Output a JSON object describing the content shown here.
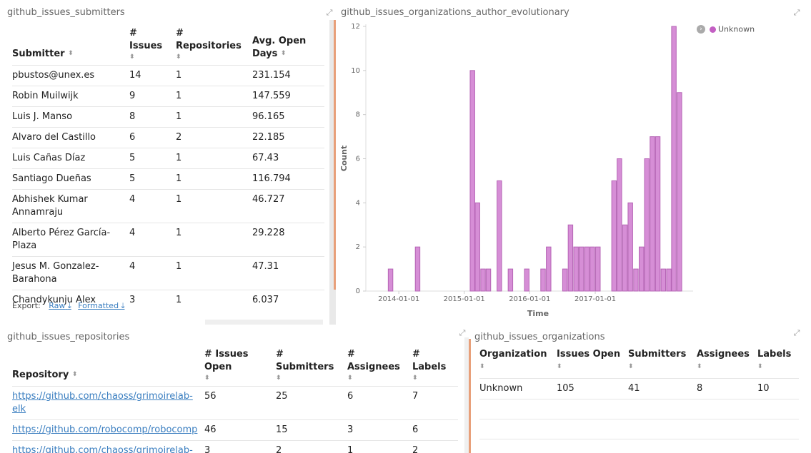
{
  "submitters": {
    "title": "github_issues_submitters",
    "columns": {
      "submitter": "Submitter",
      "issues": "# Issues",
      "repositories": "# Repositories",
      "avg_open_days": "Avg. Open Days"
    },
    "rows": [
      {
        "submitter": "pbustos@unex.es",
        "issues": "14",
        "repositories": "1",
        "avg": "231.154"
      },
      {
        "submitter": "Robin Muilwijk",
        "issues": "9",
        "repositories": "1",
        "avg": "147.559"
      },
      {
        "submitter": "Luis J. Manso",
        "issues": "8",
        "repositories": "1",
        "avg": "96.165"
      },
      {
        "submitter": "Alvaro del Castillo",
        "issues": "6",
        "repositories": "2",
        "avg": "22.185"
      },
      {
        "submitter": "Luis Cañas Díaz",
        "issues": "5",
        "repositories": "1",
        "avg": "67.43"
      },
      {
        "submitter": "Santiago Dueñas",
        "issues": "5",
        "repositories": "1",
        "avg": "116.794"
      },
      {
        "submitter": "Abhishek Kumar Annamraju",
        "issues": "4",
        "repositories": "1",
        "avg": "46.727"
      },
      {
        "submitter": "Alberto Pérez García-Plaza",
        "issues": "4",
        "repositories": "1",
        "avg": "29.228"
      },
      {
        "submitter": "Jesus M. Gonzalez-Barahona",
        "issues": "4",
        "repositories": "1",
        "avg": "47.31"
      },
      {
        "submitter": "Chandykunju Alex",
        "issues": "3",
        "repositories": "1",
        "avg": "6.037"
      }
    ],
    "export_label": "Export:",
    "export_raw": "Raw",
    "export_formatted": "Formatted"
  },
  "evolution": {
    "title": "github_issues_organizations_author_evolutionary",
    "legend": "Unknown"
  },
  "chart_data": {
    "type": "bar",
    "title": "",
    "xlabel": "Time",
    "ylabel": "Count",
    "ylim": [
      0,
      12
    ],
    "yticks": [
      0,
      2,
      4,
      6,
      8,
      10,
      12
    ],
    "xticks": [
      "2014-01-01",
      "2015-01-01",
      "2016-01-01",
      "2017-01-01"
    ],
    "legend_position": "top-right",
    "series": [
      {
        "name": "Unknown",
        "color": "#d68ed6",
        "x": [
          "2013-11",
          "2014-04",
          "2015-02",
          "2015-03",
          "2015-04",
          "2015-05",
          "2015-07",
          "2015-09",
          "2015-12",
          "2016-03",
          "2016-04",
          "2016-07",
          "2016-08",
          "2016-09",
          "2016-10",
          "2016-11",
          "2016-12",
          "2017-01",
          "2017-04",
          "2017-05",
          "2017-06",
          "2017-07",
          "2017-08",
          "2017-09",
          "2017-10",
          "2017-11",
          "2017-12",
          "2018-01",
          "2018-02",
          "2018-03",
          "2018-04",
          "2018-05",
          "2018-06"
        ],
        "values": [
          1,
          2,
          10,
          4,
          1,
          1,
          5,
          1,
          1,
          1,
          2,
          1,
          3,
          2,
          2,
          2,
          2,
          2,
          5,
          6,
          3,
          4,
          1,
          2,
          6,
          7,
          7,
          1,
          1,
          12,
          9,
          0,
          0
        ]
      }
    ]
  },
  "repositories": {
    "title": "github_issues_repositories",
    "columns": {
      "repository": "Repository",
      "issues_open": "# Issues Open",
      "submitters": "# Submitters",
      "assignees": "# Assignees",
      "labels": "# Labels"
    },
    "rows": [
      {
        "repo": "https://github.com/chaoss/grimoirelab-elk",
        "issues_open": "56",
        "submitters": "25",
        "assignees": "6",
        "labels": "7"
      },
      {
        "repo": "https://github.com/robocomp/robocomp",
        "issues_open": "46",
        "submitters": "15",
        "assignees": "3",
        "labels": "6"
      },
      {
        "repo": "https://github.com/chaoss/grimoirelab-hatstall",
        "issues_open": "3",
        "submitters": "2",
        "assignees": "1",
        "labels": "2"
      }
    ]
  },
  "organizations": {
    "title": "github_issues_organizations",
    "columns": {
      "organization": "Organization",
      "issues_open": "Issues Open",
      "submitters": "Submitters",
      "assignees": "Assignees",
      "labels": "Labels"
    },
    "rows": [
      {
        "org": "Unknown",
        "issues_open": "105",
        "submitters": "41",
        "assignees": "8",
        "labels": "10"
      }
    ]
  }
}
